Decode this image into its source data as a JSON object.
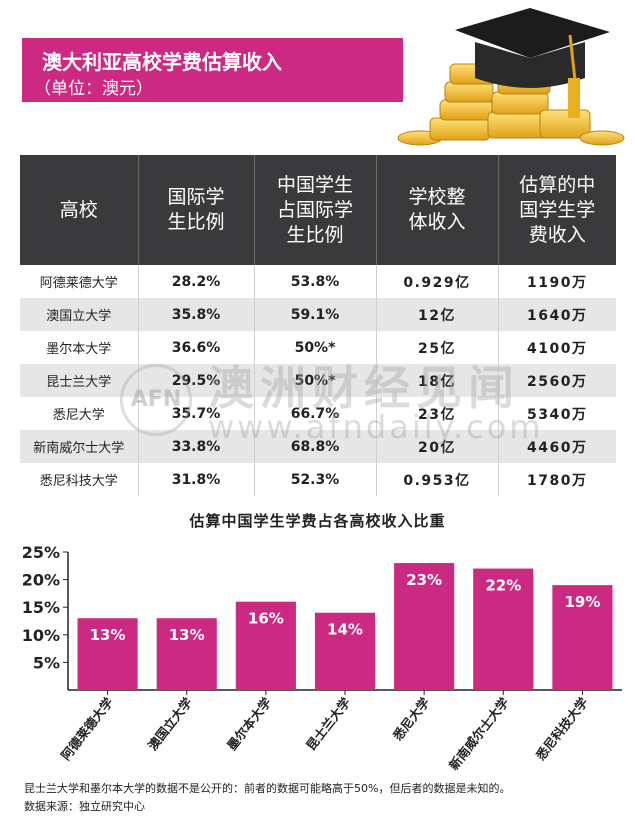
{
  "title": "澳大利亚高校学费估算收入",
  "subtitle": "（单位：澳元）",
  "table": {
    "headers": [
      [
        "高校"
      ],
      [
        "国际学",
        "生比例"
      ],
      [
        "中国学生",
        "占国际学",
        "生比例"
      ],
      [
        "学校整",
        "体收入"
      ],
      [
        "估算的中",
        "国学生学",
        "费收入"
      ]
    ],
    "rows": [
      [
        "阿德莱德大学",
        "28.2%",
        "53.8%",
        "0.929亿",
        "1190万"
      ],
      [
        "澳国立大学",
        "35.8%",
        "59.1%",
        "12亿",
        "1640万"
      ],
      [
        "墨尔本大学",
        "36.6%",
        "50%*",
        "25亿",
        "4100万"
      ],
      [
        "昆士兰大学",
        "29.5%",
        "50%*",
        "18亿",
        "2560万"
      ],
      [
        "悉尼大学",
        "35.7%",
        "66.7%",
        "23亿",
        "5340万"
      ],
      [
        "新南威尔士大学",
        "33.8%",
        "68.8%",
        "20亿",
        "4460万"
      ],
      [
        "悉尼科技大学",
        "31.8%",
        "52.3%",
        "0.953亿",
        "1780万"
      ]
    ]
  },
  "watermark": {
    "logo": "AFN",
    "name": "澳洲财经见闻",
    "url": "www.afndaily.com"
  },
  "chart_data": {
    "type": "bar",
    "title": "估算中国学生学费占各高校收入比重",
    "categories": [
      "阿德莱德大学",
      "澳国立大学",
      "墨尔本大学",
      "昆士兰大学",
      "悉尼大学",
      "新南威尔士大学",
      "悉尼科技大学"
    ],
    "values": [
      13,
      13,
      16,
      14,
      23,
      22,
      19
    ],
    "value_labels": [
      "13%",
      "13%",
      "16%",
      "14%",
      "23%",
      "22%",
      "19%"
    ],
    "yticks": [
      5,
      10,
      15,
      20,
      25
    ],
    "ytick_labels": [
      "5%",
      "10%",
      "15%",
      "20%",
      "25%"
    ],
    "ylim": [
      0,
      25
    ],
    "bar_color": "#cc2a82",
    "grid": false
  },
  "notes": [
    "昆士兰大学和墨尔本大学的数据不是公开的：前者的数据可能略高于50%，但后者的数据是未知的。",
    "数据来源：独立研究中心"
  ],
  "colors": {
    "accent": "#cc2a82",
    "header_bg": "#3a3a3c",
    "stripe": "#e6e6e6"
  }
}
